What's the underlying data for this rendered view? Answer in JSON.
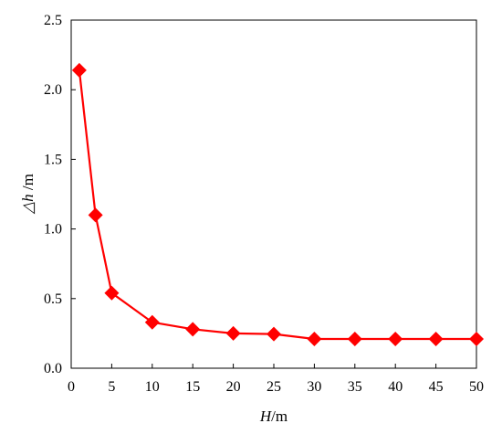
{
  "chart_data": {
    "type": "line",
    "x": [
      1,
      3,
      5,
      10,
      15,
      20,
      25,
      30,
      35,
      40,
      45,
      50
    ],
    "series": [
      {
        "values": [
          2.14,
          1.1,
          0.54,
          0.33,
          0.28,
          0.25,
          0.245,
          0.21,
          0.21,
          0.21,
          0.21,
          0.21
        ],
        "color": "#ff0000",
        "marker": "diamond"
      }
    ],
    "xlim": [
      0,
      50
    ],
    "ylim": [
      0,
      2.5
    ],
    "x_ticks": [
      "0",
      "5",
      "10",
      "15",
      "20",
      "25",
      "30",
      "35",
      "40",
      "45",
      "50"
    ],
    "y_ticks": [
      "0.0",
      "0.5",
      "1.0",
      "1.5",
      "2.0",
      "2.5"
    ],
    "xlabel": {
      "var": "H",
      "unit": "/m"
    },
    "ylabel": {
      "var": "△h",
      "unit": " /m"
    },
    "grid": false
  }
}
